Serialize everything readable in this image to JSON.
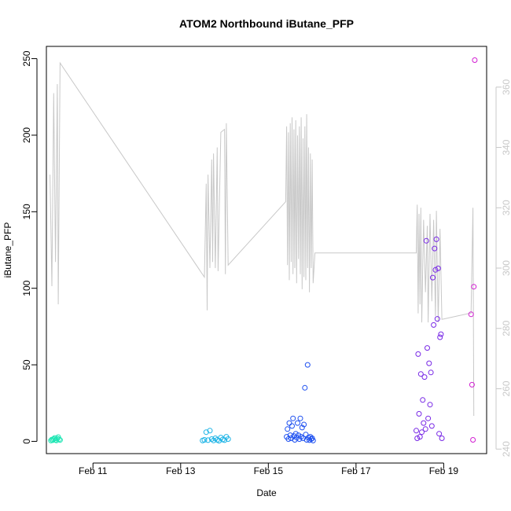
{
  "chart_data": {
    "type": "scatter",
    "title": "ATOM2 Northbound iButane_PFP",
    "xlabel": "Date",
    "ylabel": "iButane_PFP",
    "x_axis": {
      "type": "date",
      "range": [
        "2010-02-09T22:30",
        "2010-02-19T23:30"
      ],
      "ticks": [
        {
          "value": "2010-02-11",
          "label": "Feb 11"
        },
        {
          "value": "2010-02-13",
          "label": "Feb 13"
        },
        {
          "value": "2010-02-15",
          "label": "Feb 15"
        },
        {
          "value": "2010-02-17",
          "label": "Feb 17"
        },
        {
          "value": "2010-02-19",
          "label": "Feb 19"
        }
      ]
    },
    "y_axis": {
      "range": [
        -8,
        258
      ],
      "ticks": [
        0,
        50,
        100,
        150,
        200,
        250
      ]
    },
    "y2_axis": {
      "range": [
        238.5,
        373.5
      ],
      "ticks": [
        240,
        260,
        280,
        300,
        320,
        340,
        360
      ],
      "color": "#c8c8c8"
    },
    "grid": false,
    "legend": "none",
    "line_color": "#c8c8c8",
    "series": [
      {
        "color": "#1ee6b4",
        "points": [
          [
            "2010-02-10T01:00",
            0.5
          ],
          [
            "2010-02-10T01:30",
            1.2
          ],
          [
            "2010-02-10T02:00",
            0.8
          ],
          [
            "2010-02-10T02:30",
            1.5
          ],
          [
            "2010-02-10T03:00",
            2.2
          ],
          [
            "2010-02-10T03:30",
            1.0
          ],
          [
            "2010-02-10T04:00",
            0.6
          ],
          [
            "2010-02-10T04:30",
            1.8
          ],
          [
            "2010-02-10T05:00",
            2.8
          ],
          [
            "2010-02-10T05:30",
            1.4
          ],
          [
            "2010-02-10T06:00",
            0.9
          ]
        ]
      },
      {
        "color": "#1eb4e6",
        "points": [
          [
            "2010-02-13T12:00",
            0.5
          ],
          [
            "2010-02-13T13:00",
            1.0
          ],
          [
            "2010-02-13T14:00",
            6.0
          ],
          [
            "2010-02-13T15:00",
            0.8
          ],
          [
            "2010-02-13T16:00",
            7.0
          ],
          [
            "2010-02-13T17:00",
            1.5
          ],
          [
            "2010-02-13T18:00",
            0.6
          ],
          [
            "2010-02-13T19:00",
            2.0
          ],
          [
            "2010-02-13T20:00",
            1.0
          ],
          [
            "2010-02-13T21:00",
            0.4
          ],
          [
            "2010-02-13T22:00",
            2.5
          ],
          [
            "2010-02-13T23:00",
            1.2
          ],
          [
            "2010-02-14T00:00",
            0.8
          ],
          [
            "2010-02-14T01:00",
            3.0
          ],
          [
            "2010-02-14T02:00",
            1.5
          ]
        ]
      },
      {
        "color": "#1e50f0",
        "points": [
          [
            "2010-02-15T10:00",
            3.0
          ],
          [
            "2010-02-15T10:30",
            8.0
          ],
          [
            "2010-02-15T11:00",
            1.5
          ],
          [
            "2010-02-15T11:30",
            12.0
          ],
          [
            "2010-02-15T12:00",
            4.0
          ],
          [
            "2010-02-15T12:30",
            2.0
          ],
          [
            "2010-02-15T13:00",
            10.0
          ],
          [
            "2010-02-15T13:30",
            15.0
          ],
          [
            "2010-02-15T14:00",
            3.5
          ],
          [
            "2010-02-15T14:30",
            1.0
          ],
          [
            "2010-02-15T15:00",
            5.0
          ],
          [
            "2010-02-15T15:30",
            2.5
          ],
          [
            "2010-02-15T16:00",
            12.0
          ],
          [
            "2010-02-15T16:30",
            4.0
          ],
          [
            "2010-02-15T17:00",
            1.5
          ],
          [
            "2010-02-15T17:30",
            15.0
          ],
          [
            "2010-02-15T18:00",
            3.0
          ],
          [
            "2010-02-15T18:30",
            9.0
          ],
          [
            "2010-02-15T19:00",
            2.0
          ],
          [
            "2010-02-15T19:30",
            11.0
          ],
          [
            "2010-02-15T20:00",
            35.0
          ],
          [
            "2010-02-15T20:30",
            4.5
          ],
          [
            "2010-02-15T21:00",
            1.0
          ],
          [
            "2010-02-15T21:30",
            50.0
          ],
          [
            "2010-02-15T22:00",
            2.5
          ],
          [
            "2010-02-15T22:30",
            0.8
          ],
          [
            "2010-02-15T23:00",
            3.0
          ],
          [
            "2010-02-15T23:30",
            1.5
          ],
          [
            "2010-02-16T00:00",
            2.0
          ],
          [
            "2010-02-16T00:30",
            0.5
          ]
        ]
      },
      {
        "color": "#7828e6",
        "points": [
          [
            "2010-02-18T09:00",
            7.0
          ],
          [
            "2010-02-18T09:30",
            2.0
          ],
          [
            "2010-02-18T10:00",
            57.0
          ],
          [
            "2010-02-18T10:30",
            18.0
          ],
          [
            "2010-02-18T11:00",
            3.0
          ],
          [
            "2010-02-18T11:30",
            44.0
          ],
          [
            "2010-02-18T12:00",
            6.0
          ],
          [
            "2010-02-18T12:30",
            27.0
          ],
          [
            "2010-02-18T13:00",
            12.0
          ],
          [
            "2010-02-18T13:30",
            42.0
          ],
          [
            "2010-02-18T14:00",
            8.0
          ],
          [
            "2010-02-18T14:30",
            131.0
          ],
          [
            "2010-02-18T15:00",
            61.0
          ],
          [
            "2010-02-18T15:30",
            15.0
          ],
          [
            "2010-02-18T16:00",
            51.0
          ],
          [
            "2010-02-18T16:30",
            24.0
          ],
          [
            "2010-02-18T17:00",
            45.0
          ],
          [
            "2010-02-18T17:30",
            10.0
          ],
          [
            "2010-02-18T18:00",
            107.0
          ],
          [
            "2010-02-18T18:30",
            76.0
          ],
          [
            "2010-02-18T19:00",
            126.0
          ],
          [
            "2010-02-18T19:30",
            112.0
          ],
          [
            "2010-02-18T20:00",
            132.0
          ],
          [
            "2010-02-18T20:30",
            80.0
          ],
          [
            "2010-02-18T21:00",
            113.0
          ],
          [
            "2010-02-18T21:30",
            5.0
          ],
          [
            "2010-02-18T22:00",
            68.0
          ],
          [
            "2010-02-18T22:30",
            70.0
          ],
          [
            "2010-02-18T23:00",
            2.0
          ]
        ]
      },
      {
        "color": "#d21ed2",
        "points": [
          [
            "2010-02-19T15:00",
            83.0
          ],
          [
            "2010-02-19T15:30",
            37.0
          ],
          [
            "2010-02-19T16:00",
            1.0
          ],
          [
            "2010-02-19T16:30",
            101.0
          ],
          [
            "2010-02-19T17:00",
            249.0
          ]
        ]
      }
    ],
    "y2_line": [
      [
        "2010-02-10T00:30",
        331
      ],
      [
        "2010-02-10T01:30",
        294
      ],
      [
        "2010-02-10T02:30",
        358
      ],
      [
        "2010-02-10T03:30",
        302
      ],
      [
        "2010-02-10T04:30",
        361
      ],
      [
        "2010-02-10T05:00",
        288
      ],
      [
        "2010-02-10T06:00",
        368
      ],
      [
        "2010-02-13T13:00",
        297
      ],
      [
        "2010-02-13T14:00",
        328
      ],
      [
        "2010-02-13T14:30",
        286
      ],
      [
        "2010-02-13T15:00",
        331
      ],
      [
        "2010-02-13T16:00",
        300
      ],
      [
        "2010-02-13T17:00",
        336
      ],
      [
        "2010-02-13T17:30",
        302
      ],
      [
        "2010-02-13T18:00",
        338
      ],
      [
        "2010-02-13T19:00",
        300
      ],
      [
        "2010-02-13T20:00",
        340
      ],
      [
        "2010-02-13T20:30",
        299
      ],
      [
        "2010-02-13T22:00",
        345
      ],
      [
        "2010-02-14T00:00",
        346
      ],
      [
        "2010-02-14T00:30",
        298
      ],
      [
        "2010-02-14T01:00",
        348
      ],
      [
        "2010-02-14T02:00",
        301
      ],
      [
        "2010-02-15T09:30",
        322
      ],
      [
        "2010-02-15T10:00",
        347
      ],
      [
        "2010-02-15T10:30",
        301
      ],
      [
        "2010-02-15T11:00",
        345
      ],
      [
        "2010-02-15T11:30",
        296
      ],
      [
        "2010-02-15T12:00",
        348
      ],
      [
        "2010-02-15T12:30",
        302
      ],
      [
        "2010-02-15T13:00",
        350
      ],
      [
        "2010-02-15T13:30",
        298
      ],
      [
        "2010-02-15T14:00",
        346
      ],
      [
        "2010-02-15T14:30",
        300
      ],
      [
        "2010-02-15T15:00",
        349
      ],
      [
        "2010-02-15T15:30",
        295
      ],
      [
        "2010-02-15T16:00",
        344
      ],
      [
        "2010-02-15T16:30",
        303
      ],
      [
        "2010-02-15T17:00",
        347
      ],
      [
        "2010-02-15T17:30",
        298
      ],
      [
        "2010-02-15T18:00",
        350
      ],
      [
        "2010-02-15T18:30",
        293
      ],
      [
        "2010-02-15T19:00",
        343
      ],
      [
        "2010-02-15T19:30",
        297
      ],
      [
        "2010-02-15T20:00",
        347
      ],
      [
        "2010-02-15T20:30",
        296
      ],
      [
        "2010-02-15T21:00",
        351
      ],
      [
        "2010-02-15T21:30",
        300
      ],
      [
        "2010-02-15T22:00",
        340
      ],
      [
        "2010-02-15T22:30",
        292
      ],
      [
        "2010-02-15T23:00",
        338
      ],
      [
        "2010-02-15T23:30",
        300
      ],
      [
        "2010-02-16T00:00",
        336
      ],
      [
        "2010-02-16T00:30",
        295
      ],
      [
        "2010-02-16T01:30",
        305
      ],
      [
        "2010-02-18T09:00",
        305
      ],
      [
        "2010-02-18T09:30",
        321
      ],
      [
        "2010-02-18T10:00",
        285
      ],
      [
        "2010-02-18T10:30",
        318
      ],
      [
        "2010-02-18T11:00",
        288
      ],
      [
        "2010-02-18T11:30",
        320
      ],
      [
        "2010-02-18T12:00",
        282
      ],
      [
        "2010-02-18T13:00",
        316
      ],
      [
        "2010-02-18T14:00",
        292
      ],
      [
        "2010-02-18T15:00",
        314
      ],
      [
        "2010-02-18T15:30",
        282
      ],
      [
        "2010-02-18T16:30",
        318
      ],
      [
        "2010-02-18T17:30",
        289
      ],
      [
        "2010-02-18T18:30",
        316
      ],
      [
        "2010-02-18T19:30",
        284
      ],
      [
        "2010-02-18T20:00",
        319
      ],
      [
        "2010-02-18T21:00",
        282
      ],
      [
        "2010-02-18T22:00",
        313
      ],
      [
        "2010-02-18T23:00",
        283
      ],
      [
        "2010-02-19T14:00",
        285
      ],
      [
        "2010-02-19T15:00",
        285
      ],
      [
        "2010-02-19T16:00",
        320
      ],
      [
        "2010-02-19T16:30",
        251
      ]
    ]
  }
}
